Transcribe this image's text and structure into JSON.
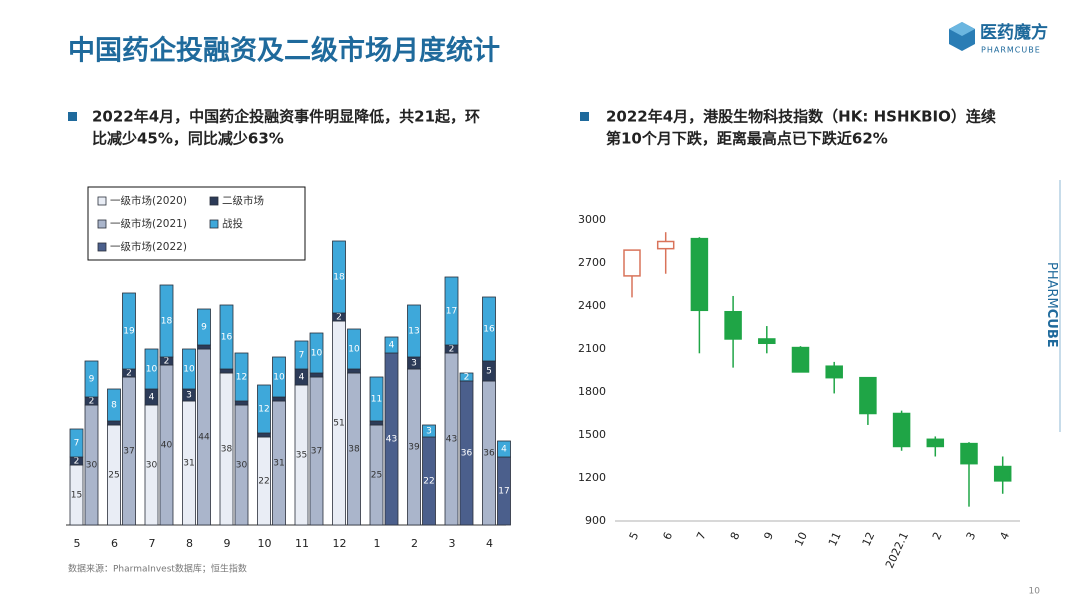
{
  "header": {
    "title": "中国药企投融资及二级市场月度统计"
  },
  "logo": {
    "name": "医药魔方",
    "tagline": "PHARMCUBE"
  },
  "side_brand": {
    "light": "PHARM",
    "bold": "CUBE"
  },
  "bullets": [
    {
      "lines": [
        "2022年4月，中国药企投融资事件明显降低，共21起，环",
        "比减少45%，同比减少63%"
      ]
    },
    {
      "lines": [
        "2022年4月，港股生物科技指数（HK: HSHKBIO）连续",
        "第10个月下跌，距离最高点已下跌近62%"
      ]
    }
  ],
  "chart_data": [
    {
      "type": "grouped_stacked_bar",
      "categories": [
        "5",
        "6",
        "7",
        "8",
        "9",
        "10",
        "11",
        "12",
        "1",
        "2",
        "3",
        "4"
      ],
      "series": [
        {
          "name": "一级市场(2020)",
          "color": "#e9edf5",
          "values": [
            [
              15,
              null
            ],
            [
              25,
              null
            ],
            [
              30,
              null
            ],
            [
              31,
              null
            ],
            [
              38,
              null
            ],
            [
              22,
              null
            ],
            [
              35,
              null
            ],
            [
              51,
              null
            ],
            [
              null,
              null
            ],
            [
              null,
              null
            ],
            [
              null,
              null
            ],
            [
              null,
              null
            ]
          ]
        },
        {
          "name": "一级市场(2021)",
          "color": "#aab5cb",
          "values": [
            [
              null,
              30
            ],
            [
              null,
              37
            ],
            [
              null,
              40
            ],
            [
              null,
              44
            ],
            [
              null,
              30
            ],
            [
              null,
              31
            ],
            [
              null,
              37
            ],
            [
              null,
              38
            ],
            [
              25,
              null
            ],
            [
              39,
              null
            ],
            [
              43,
              null
            ],
            [
              36,
              null
            ]
          ]
        },
        {
          "name": "一级市场(2022)",
          "color": "#4b5f8c",
          "values": [
            [
              null,
              null
            ],
            [
              null,
              null
            ],
            [
              null,
              null
            ],
            [
              null,
              null
            ],
            [
              null,
              null
            ],
            [
              null,
              null
            ],
            [
              null,
              null
            ],
            [
              null,
              null
            ],
            [
              null,
              43
            ],
            [
              null,
              22
            ],
            [
              null,
              36
            ],
            [
              null,
              17
            ]
          ]
        },
        {
          "name": "二级市场",
          "color": "#2c3b58",
          "values": [
            [
              2,
              2
            ],
            [
              1,
              2
            ],
            [
              4,
              2
            ],
            [
              3,
              1
            ],
            [
              1,
              1
            ],
            [
              1,
              1
            ],
            [
              4,
              1
            ],
            [
              2,
              1
            ],
            [
              1,
              null
            ],
            [
              3,
              null
            ],
            [
              2,
              null
            ],
            [
              5,
              null
            ]
          ]
        },
        {
          "name": "战投",
          "color": "#3ea8da",
          "values": [
            [
              7,
              9
            ],
            [
              8,
              19
            ],
            [
              10,
              18
            ],
            [
              10,
              9
            ],
            [
              16,
              12
            ],
            [
              12,
              10
            ],
            [
              7,
              10
            ],
            [
              18,
              10
            ],
            [
              11,
              4
            ],
            [
              13,
              3
            ],
            [
              17,
              2
            ],
            [
              16,
              4
            ]
          ]
        }
      ],
      "ylim": [
        0,
        75
      ],
      "legend": "top-left"
    },
    {
      "type": "candlestick",
      "categories": [
        "5",
        "6",
        "7",
        "8",
        "9",
        "10",
        "11",
        "12",
        "2022.1",
        "2",
        "3",
        "4"
      ],
      "open": [
        2610,
        2800,
        2870,
        2360,
        2170,
        2110,
        1980,
        1900,
        1650,
        1470,
        1440,
        1280
      ],
      "high": [
        2790,
        2915,
        2880,
        2470,
        2260,
        2120,
        2010,
        1900,
        1670,
        1490,
        1450,
        1350
      ],
      "low": [
        2460,
        2625,
        2070,
        1970,
        2070,
        1940,
        1790,
        1570,
        1390,
        1350,
        1000,
        1090
      ],
      "close": [
        2790,
        2850,
        2370,
        2170,
        2140,
        1940,
        1900,
        1650,
        1420,
        1420,
        1300,
        1180
      ],
      "up_color": "#d9735a",
      "down_color": "#1fa546",
      "ylim": [
        900,
        3000
      ],
      "yticks": [
        900,
        1200,
        1500,
        1800,
        2100,
        2400,
        2700,
        3000
      ]
    }
  ],
  "source": "数据来源：PharmaInvest数据库；恒生指数",
  "page_number": 10
}
